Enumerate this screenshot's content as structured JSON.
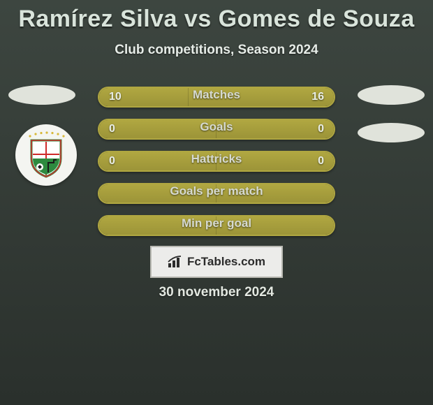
{
  "title": "Ramírez Silva vs Gomes de Souza",
  "subtitle": "Club competitions, Season 2024",
  "date": "30 november 2024",
  "branding": {
    "name": "FcTables.com"
  },
  "colors": {
    "bar_fill": "#a59c3d",
    "bar_border": "#b0a741",
    "row_bg": "#33372f",
    "stage_bg_top": "#3d4640",
    "stage_bg_bottom": "#2a302c",
    "disc": "#e0e3db",
    "crest_bg": "#f4f5f1",
    "text_primary": "#d9e4db",
    "text_body": "#e6ece7"
  },
  "stats": [
    {
      "label": "Matches",
      "left_val": "10",
      "right_val": "16",
      "left_pct": 38,
      "right_pct": 62,
      "show_vals": true
    },
    {
      "label": "Goals",
      "left_val": "0",
      "right_val": "0",
      "left_pct": 50,
      "right_pct": 50,
      "show_vals": true
    },
    {
      "label": "Hattricks",
      "left_val": "0",
      "right_val": "0",
      "left_pct": 50,
      "right_pct": 50,
      "show_vals": true
    },
    {
      "label": "Goals per match",
      "left_val": "",
      "right_val": "",
      "left_pct": 50,
      "right_pct": 50,
      "show_vals": false
    },
    {
      "label": "Min per goal",
      "left_val": "",
      "right_val": "",
      "left_pct": 50,
      "right_pct": 50,
      "show_vals": false
    }
  ],
  "crest": {
    "name": "oriente-petrolero",
    "shield_color": "#2e8a3f",
    "shield_border": "#cf2a2a",
    "accent_gold": "#d7b83a"
  }
}
